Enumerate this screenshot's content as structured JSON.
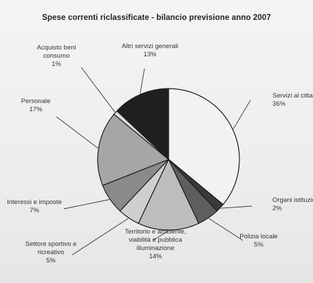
{
  "chart_data": {
    "type": "pie",
    "title": "Spese correnti riclassificate - bilancio previsione anno 2007",
    "unit": "%",
    "slices": [
      {
        "label": "Servizi al cittadino",
        "lines": [
          "Servizi al cittadino"
        ],
        "value": 36,
        "value_text": "36%",
        "color": "#f2f2f2"
      },
      {
        "label": "Organi istituzionali",
        "lines": [
          "Organi istituzionali"
        ],
        "value": 2,
        "value_text": "2%",
        "color": "#3a3a3a"
      },
      {
        "label": "Polizia locale",
        "lines": [
          "Polizia locale"
        ],
        "value": 5,
        "value_text": "5%",
        "color": "#5e5e5e"
      },
      {
        "label": "Territorio e ambiente, viabilità e pubblica illuminazione",
        "lines": [
          "Territorio e ambiente,",
          "viabilità e pubblica",
          "illuminazione"
        ],
        "value": 14,
        "value_text": "14%",
        "color": "#bdbdbd"
      },
      {
        "label": "Settore sportivo e ricreativo",
        "lines": [
          "Settore sportivo e",
          "ricreativo"
        ],
        "value": 5,
        "value_text": "5%",
        "color": "#cfcfcf"
      },
      {
        "label": "Interessi e imposte",
        "lines": [
          "Interessi e imposte"
        ],
        "value": 7,
        "value_text": "7%",
        "color": "#8a8a8a"
      },
      {
        "label": "Personale",
        "lines": [
          "Personale"
        ],
        "value": 17,
        "value_text": "17%",
        "color": "#a6a6a6"
      },
      {
        "label": "Acquisto beni consumo",
        "lines": [
          "Acquisto beni",
          "consumo"
        ],
        "value": 1,
        "value_text": "1%",
        "color": "#dcdcdc"
      },
      {
        "label": "Altri servizi generali",
        "lines": [
          "Altri servizi generali"
        ],
        "value": 13,
        "value_text": "13%",
        "color": "#1f1f1f"
      }
    ]
  }
}
